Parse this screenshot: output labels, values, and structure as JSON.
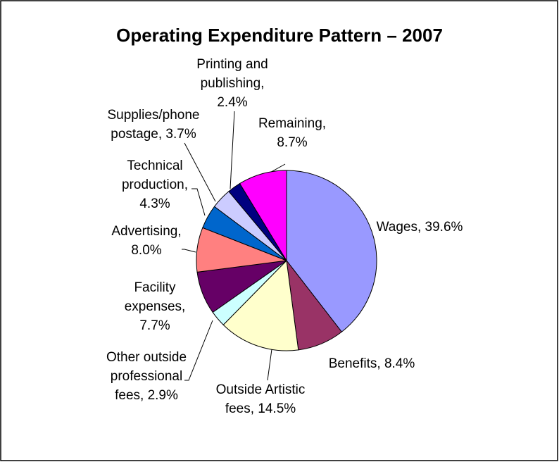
{
  "chart_data": {
    "type": "pie",
    "title": "Operating Expenditure Pattern – 2007",
    "values": [
      39.6,
      8.4,
      14.5,
      2.9,
      7.7,
      8.0,
      4.3,
      3.7,
      2.4,
      8.7
    ],
    "value_labels": [
      [
        "Wages, 39.6%"
      ],
      [
        "Benefits, 8.4%"
      ],
      [
        "Outside Artistic",
        "fees, 14.5%"
      ],
      [
        "Other outside",
        "professional",
        "fees, 2.9%"
      ],
      [
        "Facility",
        "expenses,",
        "7.7%"
      ],
      [
        "Advertising,",
        "8.0%"
      ],
      [
        "Technical",
        "production,",
        "4.3%"
      ],
      [
        "Supplies/phone",
        "postage, 3.7%"
      ],
      [
        "Printing and",
        "publishing,",
        "2.4%"
      ],
      [
        "Remaining,",
        "8.7%"
      ]
    ],
    "colors": [
      "#9999ff",
      "#993366",
      "#ffffcc",
      "#ccffff",
      "#660066",
      "#ff8080",
      "#0066cc",
      "#ccccff",
      "#000080",
      "#ff00ff"
    ]
  }
}
